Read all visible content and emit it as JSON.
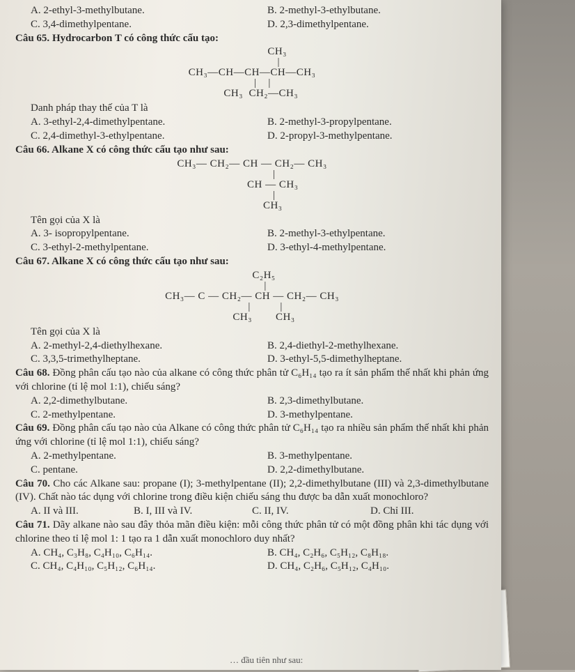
{
  "q64": {
    "optA": "A. 2-ethyl-3-methylbutane.",
    "optB": "B. 2-methyl-3-ethylbutane.",
    "optC": "C. 3,4-dimethylpentane.",
    "optD": "D. 2,3-dimethylpentane."
  },
  "q65": {
    "stem": "Câu 65. Hydrocarbon T có công thức cấu tạo:",
    "formula": "                 CH₃\n                  |\nCH₃—CH—CH—CH—CH₃\n       |    |\n      CH₃  CH₂—CH₃",
    "lead": "Danh pháp thay thế của T là",
    "optA": "A. 3-ethyl-2,4-dimethylpentane.",
    "optB": "B. 2-methyl-3-propylpentane.",
    "optC": "C. 2,4-dimethyl-3-ethylpentane.",
    "optD": "D. 2-propyl-3-methylpentane."
  },
  "q66": {
    "stem": "Câu 66. Alkane X có công thức cấu tạo như sau:",
    "formula": "CH₃— CH₂— CH — CH₂— CH₃\n               |\n              CH — CH₃\n               |\n              CH₃",
    "lead": "Tên gọi của X là",
    "optA": "A. 3- isopropylpentane.",
    "optB": "B. 2-methyl-3-ethylpentane.",
    "optC": "C. 3-ethyl-2-methylpentane.",
    "optD": "D. 3-ethyl-4-methylpentane."
  },
  "q67": {
    "stem": "Câu 67. Alkane X có công thức cấu tạo như sau:",
    "formula": "        C₂H₅\n         |\nCH₃— C — CH₂— CH — CH₂— CH₃\n         |          |\n        CH₃        CH₃",
    "lead": "Tên gọi của X là",
    "optA": "A. 2-methyl-2,4-diethylhexane.",
    "optB": "B. 2,4-diethyl-2-methylhexane.",
    "optC": "C. 3,3,5-trimethylheptane.",
    "optD": "D. 3-ethyl-5,5-dimethylheptane."
  },
  "q68": {
    "stem": "Câu 68. Đồng phân cấu tạo nào của alkane có công thức phân tử C₆H₁₄ tạo ra ít sản phẩm thế nhất khi phản ứng với chlorine (tỉ lệ mol 1:1), chiếu sáng?",
    "optA": "A. 2,2-dimethylbutane.",
    "optB": "B. 2,3-dimethylbutane.",
    "optC": "C. 2-methylpentane.",
    "optD": "D. 3-methylpentane."
  },
  "q69": {
    "stem": "Câu 69. Đồng phân cấu tạo nào của Alkane có công thức phân tử C₆H₁₄ tạo ra nhiều sản phẩm thế nhất khi phản ứng với chlorine (tỉ lệ mol 1:1), chiếu sáng?",
    "optA": "A. 2-methylpentane.",
    "optB": "B. 3-methylpentane.",
    "optC": "C. pentane.",
    "optD": "D. 2,2-dimethylbutane."
  },
  "q70": {
    "stem": "Câu 70. Cho các Alkane sau: propane (I); 3-methylpentane (II); 2,2-dimethylbutane (III) và 2,3-dimethylbutane (IV). Chất nào tác dụng với chlorine trong điều kiện chiếu sáng thu được ba dẫn xuất monochloro?",
    "optA": "A. II và III.",
    "optB": "B. I, III và IV.",
    "optC": "C. II, IV.",
    "optD": "D. Chỉ III."
  },
  "q71": {
    "stem": "Câu 71. Dãy alkane nào sau đây thỏa mãn điều kiện: mỗi công thức phân tử có một đồng phân khi tác dụng với chlorine theo tỉ lệ mol 1: 1 tạo ra 1 dẫn xuất monochloro duy nhất?",
    "optA": "A. CH₄, C₃H₈, C₄H₁₀, C₆H₁₄.",
    "optB": "B. CH₄, C₂H₆, C₅H₁₂, C₈H₁₈.",
    "optC": "C. CH₄, C₄H₁₀, C₅H₁₂, C₆H₁₄.",
    "optD": "D. CH₄, C₂H₆, C₅H₁₂, C₄H₁₀."
  },
  "footer": "… đầu tiên như sau:"
}
